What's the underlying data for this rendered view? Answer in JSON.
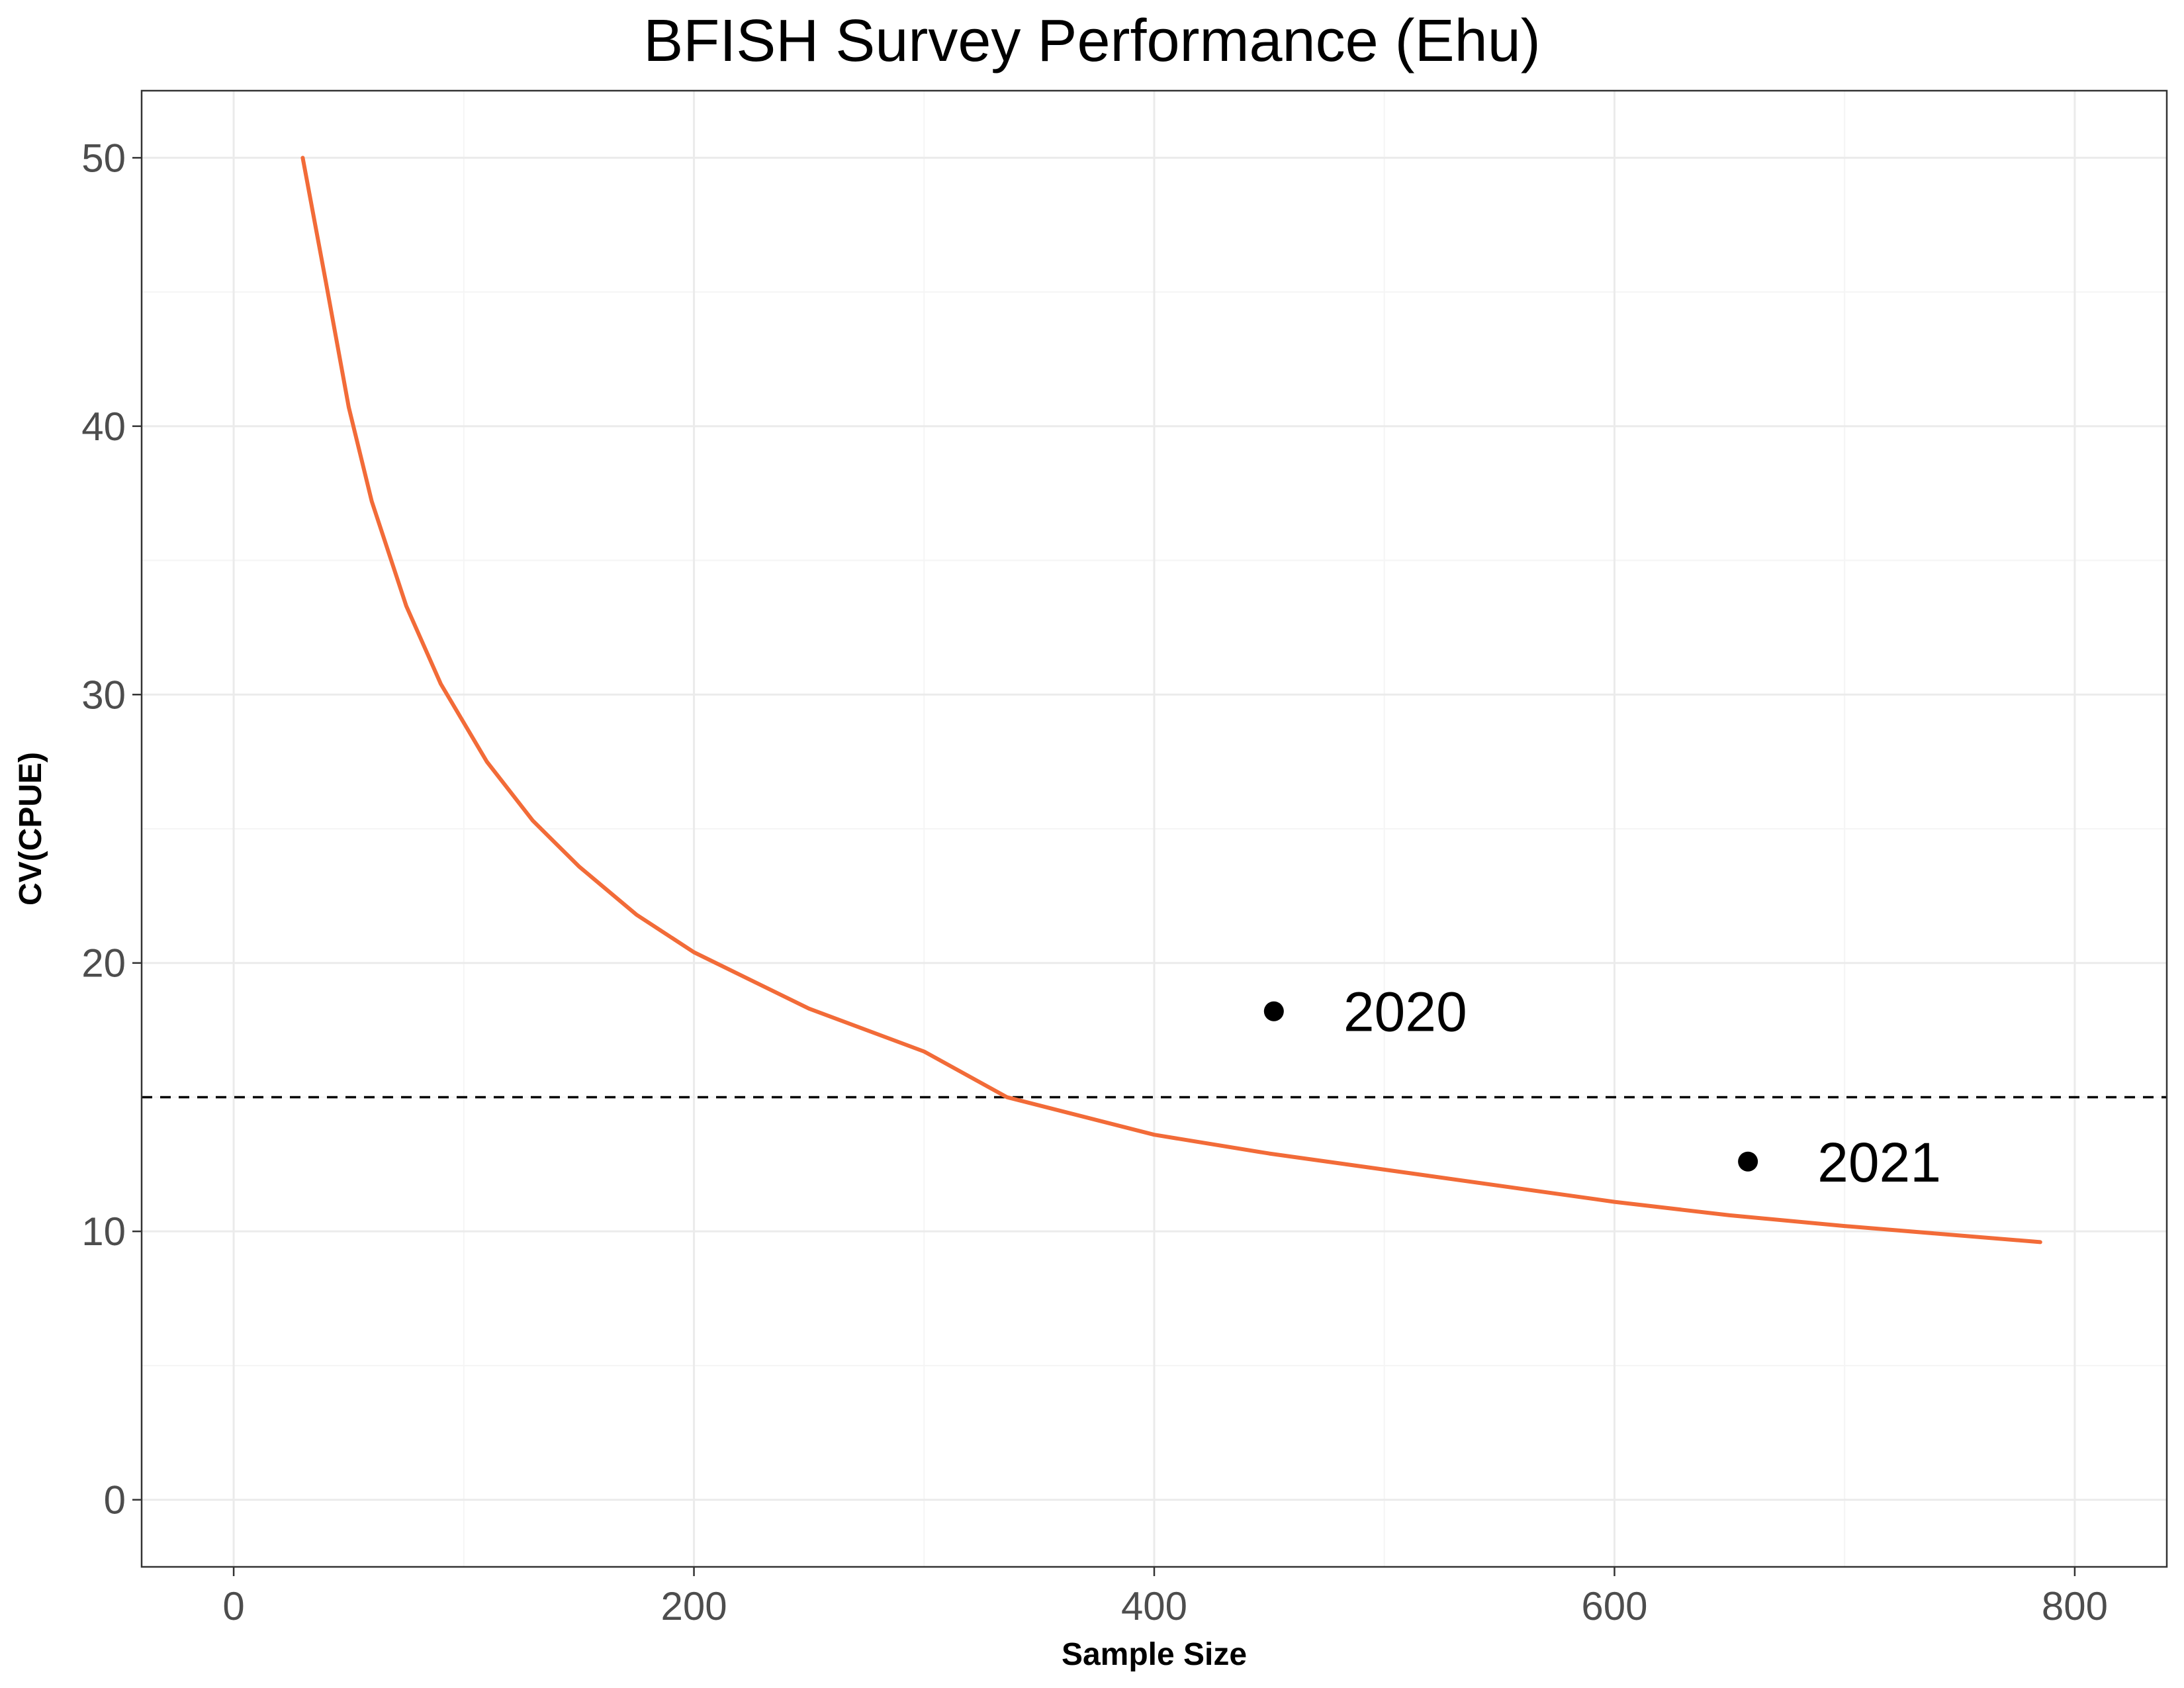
{
  "chart_data": {
    "type": "line",
    "title": "BFISH Survey Performance (Ehu)",
    "xlabel": "Sample Size",
    "ylabel": "CV(CPUE)",
    "xlim": [
      -40,
      840
    ],
    "ylim": [
      -2.5,
      52.5
    ],
    "x_ticks": [
      0,
      200,
      400,
      600,
      800
    ],
    "y_ticks": [
      0,
      10,
      20,
      30,
      40,
      50
    ],
    "grid": true,
    "series": [
      {
        "type": "line",
        "x": [
          30,
          40,
          50,
          60,
          75,
          90,
          110,
          130,
          150,
          175,
          200,
          250,
          300,
          336,
          400,
          450,
          500,
          600,
          650,
          700,
          785
        ],
        "y": [
          50.0,
          45.4,
          40.7,
          37.2,
          33.3,
          30.4,
          27.5,
          25.3,
          23.6,
          21.8,
          20.4,
          18.3,
          16.7,
          15.0,
          13.6,
          12.9,
          12.3,
          11.1,
          10.6,
          10.2,
          9.6
        ],
        "color": "#f26b38"
      },
      {
        "type": "scatter",
        "x": [
          452,
          658
        ],
        "y": [
          18.2,
          12.6
        ],
        "labels": [
          "2020",
          "2021"
        ],
        "color": "#000000"
      }
    ],
    "reference_lines": [
      {
        "orientation": "horizontal",
        "y": 15,
        "style": "dashed",
        "color": "#000000"
      }
    ]
  },
  "colors": {
    "panel_border": "#333333",
    "grid_major": "#ebebeb",
    "grid_minor": "#f5f5f5",
    "tick_text": "#4d4d4d"
  }
}
